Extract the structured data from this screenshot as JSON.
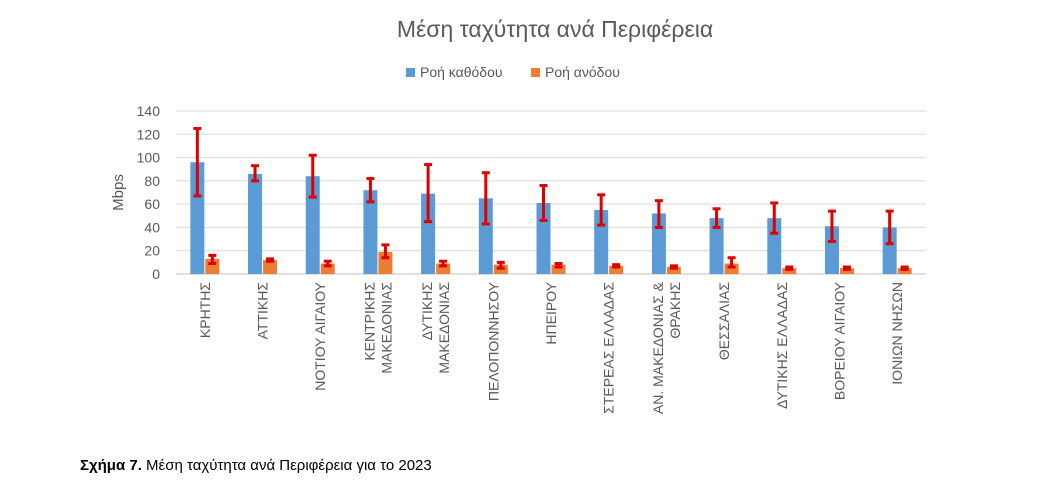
{
  "chart_data": {
    "type": "bar",
    "title": "Μέση ταχύτητα ανά Περιφέρεια",
    "ylabel": "Mbps",
    "xlabel": "",
    "ylim": [
      0,
      140
    ],
    "yticks": [
      0,
      20,
      40,
      60,
      80,
      100,
      120,
      140
    ],
    "grid": true,
    "legend": "top-center",
    "categories": [
      [
        "ΚΡΗΤΗΣ"
      ],
      [
        "ΑΤΤΙΚΗΣ"
      ],
      [
        "ΝΟΤΙΟΥ ΑΙΓΑΙΟΥ"
      ],
      [
        "ΚΕΝΤΡΙΚΗΣ",
        "ΜΑΚΕΔΟΝΙΑΣ"
      ],
      [
        "ΔΥΤΙΚΗΣ",
        "ΜΑΚΕΔΟΝΙΑΣ"
      ],
      [
        "ΠΕΛΟΠΟΝΝΗΣΟΥ"
      ],
      [
        "ΗΠΕΙΡΟΥ"
      ],
      [
        "ΣΤΕΡΕΑΣ ΕΛΛΑΔΑΣ"
      ],
      [
        "ΑΝ. ΜΑΚΕΔΟΝΙΑΣ &",
        "ΘΡΑΚΗΣ"
      ],
      [
        "ΘΕΣΣΑΛΙΑΣ"
      ],
      [
        "ΔΥΤΙΚΗΣ ΕΛΛΑΔΑΣ"
      ],
      [
        "ΒΟΡΕΙΟΥ ΑΙΓΑΙΟΥ"
      ],
      [
        "ΙΟΝΙΩΝ ΝΗΣΩΝ"
      ]
    ],
    "series": [
      {
        "name": "Ροή καθόδου",
        "color": "#5B9BD5",
        "values": [
          96,
          86,
          84,
          72,
          69,
          65,
          61,
          55,
          52,
          48,
          48,
          41,
          40
        ],
        "error_low": [
          67,
          80,
          66,
          62,
          45,
          43,
          46,
          42,
          40,
          40,
          35,
          28,
          26
        ],
        "error_high": [
          125,
          93,
          102,
          82,
          94,
          87,
          76,
          68,
          63,
          56,
          61,
          54,
          54
        ]
      },
      {
        "name": "Ροή ανόδου",
        "color": "#ED7D31",
        "values": [
          13,
          12,
          9,
          19,
          9,
          8,
          8,
          7,
          6,
          9,
          5,
          5,
          5
        ],
        "error_low": [
          9,
          11,
          7,
          14,
          7,
          5,
          6,
          6,
          5,
          6,
          4,
          4,
          4
        ],
        "error_high": [
          16,
          13,
          11,
          25,
          11,
          10,
          9,
          8,
          7,
          14,
          6,
          6,
          6
        ]
      }
    ],
    "error_bar_color": "#E00000"
  },
  "caption": {
    "label": "Σχήμα 7.",
    "text": " Μέση ταχύτητα ανά Περιφέρεια για το 2023"
  }
}
